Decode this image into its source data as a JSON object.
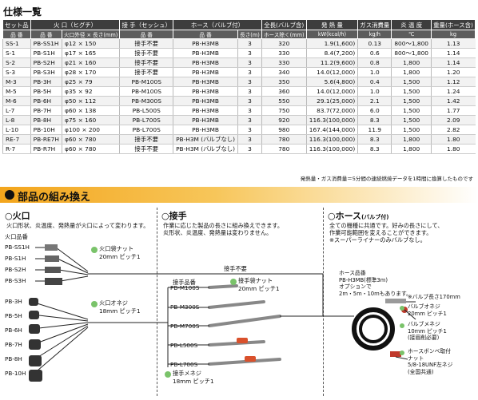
{
  "spec": {
    "title": "仕様一覧",
    "header1": {
      "set": "セット品",
      "burner": "火 口（ヒグチ）",
      "joint": "接 手（セッシュ）",
      "hose": "ホース（バルブ付）",
      "total_length": "全長(バルブ含)",
      "heat": "発 熱 量",
      "gas": "ガス消費量",
      "flame_temp": "炎 温 度",
      "weight": "重量(ホース含)"
    },
    "header2": {
      "part_no": "品 番",
      "burner_part": "品 番",
      "burner_size": "火口外径 × 長さ(mm)",
      "joint_part": "品 番",
      "hose_part": "品 番",
      "hose_length": "長さ(m)",
      "total_length_unit": "ホース除く(mm)",
      "heat_unit": "kW(kcal/h)",
      "gas_unit": "kg/h",
      "temp_unit": "℃",
      "weight_unit": "kg"
    },
    "rows": [
      {
        "set": "SS-1",
        "burner": "PB-SS1H",
        "size": "φ12 × 150",
        "joint": "接手不要",
        "hose": "PB-H3MB",
        "len": "3",
        "total": "320",
        "heat": "1.9(1,600)",
        "gas": "0.13",
        "temp": "800～1,800",
        "weight": "1.13"
      },
      {
        "set": "S-1",
        "burner": "PB-S1H",
        "size": "φ17 × 165",
        "joint": "接手不要",
        "hose": "PB-H3MB",
        "len": "3",
        "total": "330",
        "heat": "8.4(7,200)",
        "gas": "0.6",
        "temp": "800～1,800",
        "weight": "1.14"
      },
      {
        "set": "S-2",
        "burner": "PB-S2H",
        "size": "φ21 × 160",
        "joint": "接手不要",
        "hose": "PB-H3MB",
        "len": "3",
        "total": "330",
        "heat": "11.2(9,600)",
        "gas": "0.8",
        "temp": "1,800",
        "weight": "1.14"
      },
      {
        "set": "S-3",
        "burner": "PB-S3H",
        "size": "φ28 × 170",
        "joint": "接手不要",
        "hose": "PB-H3MB",
        "len": "3",
        "total": "340",
        "heat": "14.0(12,000)",
        "gas": "1.0",
        "temp": "1,800",
        "weight": "1.20"
      },
      {
        "set": "M-3",
        "burner": "PB-3H",
        "size": "φ25 × 79",
        "joint": "PB-M100S",
        "hose": "PB-H3MB",
        "len": "3",
        "total": "350",
        "heat": "5.6(4,800)",
        "gas": "0.4",
        "temp": "1,500",
        "weight": "1.12"
      },
      {
        "set": "M-5",
        "burner": "PB-5H",
        "size": "φ35 × 92",
        "joint": "PB-M100S",
        "hose": "PB-H3MB",
        "len": "3",
        "total": "360",
        "heat": "14.0(12,000)",
        "gas": "1.0",
        "temp": "1,500",
        "weight": "1.24"
      },
      {
        "set": "M-6",
        "burner": "PB-6H",
        "size": "φ50 × 112",
        "joint": "PB-M300S",
        "hose": "PB-H3MB",
        "len": "3",
        "total": "550",
        "heat": "29.1(25,000)",
        "gas": "2.1",
        "temp": "1,500",
        "weight": "1.42"
      },
      {
        "set": "L-7",
        "burner": "PB-7H",
        "size": "φ60 × 138",
        "joint": "PB-L500S",
        "hose": "PB-H3MB",
        "len": "3",
        "total": "750",
        "heat": "83.7(72,000)",
        "gas": "6.0",
        "temp": "1,500",
        "weight": "1.77"
      },
      {
        "set": "L-8",
        "burner": "PB-8H",
        "size": "φ75 × 160",
        "joint": "PB-L700S",
        "hose": "PB-H3MB",
        "len": "3",
        "total": "920",
        "heat": "116.3(100,000)",
        "gas": "8.3",
        "temp": "1,500",
        "weight": "2.09"
      },
      {
        "set": "L-10",
        "burner": "PB-10H",
        "size": "φ100 × 200",
        "joint": "PB-L700S",
        "hose": "PB-H3MB",
        "len": "3",
        "total": "980",
        "heat": "167.4(144,000)",
        "gas": "11.9",
        "temp": "1,500",
        "weight": "2.82"
      },
      {
        "set": "RE-7",
        "burner": "PB-RE7H",
        "size": "φ60 × 780",
        "joint": "接手不要",
        "hose": "PB-H3M (バルブなし)",
        "len": "3",
        "total": "780",
        "heat": "116.3(100,000)",
        "gas": "8.3",
        "temp": "1,800",
        "weight": "1.80"
      },
      {
        "set": "R-7",
        "burner": "PB-R7H",
        "size": "φ60 × 780",
        "joint": "接手不要",
        "hose": "PB-H3M (バルブなし)",
        "len": "3",
        "total": "780",
        "heat": "116.3(100,000)",
        "gas": "8.3",
        "temp": "1,800",
        "weight": "1.80"
      }
    ],
    "note": "発熱量・ガス消費量＝5分間の連続燃焼データを1時間に換算したものです"
  },
  "section_title": "部品の組み換え",
  "burner": {
    "heading": "○火口",
    "desc": "火口形状、炎温度、発熱量が火口によって変わります。",
    "group_label": "火口品番",
    "small": [
      "PB-SS1H",
      "PB-S1H",
      "PB-S2H",
      "PB-S3H"
    ],
    "small_conn": "火口袋ナット\n20mm ピッチ1",
    "large": [
      "PB-3H",
      "PB-5H",
      "PB-6H",
      "PB-7H",
      "PB-8H",
      "PB-10H"
    ],
    "large_conn": "火口オネジ\n18mm ピッチ1"
  },
  "joint": {
    "heading": "○接手",
    "desc": "作業に応じた製品の長さに組み換えできます。\n炎形状、炎温度、発熱量は変わりません。",
    "no_joint": "接手不要",
    "group_label": "接手品番",
    "parts": [
      "PB-M100S",
      "PB-M300S",
      "PB-M700S",
      "PB-L500S",
      "PB-L700S"
    ],
    "top_conn": "接手袋ナット\n20mm ピッチ1",
    "bottom_conn": "接手メネジ\n18mm ピッチ1"
  },
  "hose": {
    "heading": "○ホース",
    "heading_small": "(バルブ付)",
    "desc": "全ての機種に共通です。好みの長さにして、\n作業可能範囲を変えることができます。\n※スーパーライナーのみバルブなし。",
    "part_label": "ホース品番\nPB-H3MB(標準3m)\nオプションで\n2m・5m・10mもあります。",
    "valve_note": "※バルブ長さ170mm",
    "conn1": "バルブオネジ\n20mm ピッチ1",
    "conn2": "バルブメネジ\n10mm ピッチ1\n(接眉削必要)",
    "conn3": "ホースボンベ取付\nナット\n5/8-18UNF左ネジ\n(全国共通)"
  }
}
